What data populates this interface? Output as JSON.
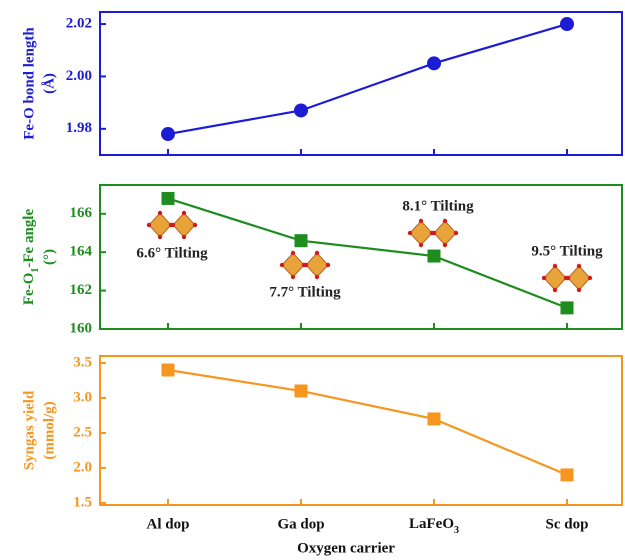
{
  "chart_data": [
    {
      "type": "line",
      "marker": "circle",
      "color": "#1c1cd6",
      "y_label": [
        "Fe-O bond length",
        "(Å)"
      ],
      "values": [
        1.978,
        1.987,
        2.005,
        2.02
      ],
      "ylim": [
        1.97,
        2.0246
      ],
      "yticks": [
        1.98,
        {
          "value": 2,
          "label": "2.00"
        },
        2.02
      ]
    },
    {
      "type": "line",
      "marker": "square",
      "color": "#1f8c1f",
      "y_label": [
        "Fe-O1-Fe angle",
        "(°)"
      ],
      "values": [
        166.8,
        164.6,
        163.8,
        161.1
      ],
      "annotations": [
        "6.6° Tilting",
        "7.7° Tilting",
        "8.1° Tilting",
        "9.5° Tilting"
      ],
      "ylim": [
        160,
        167.5
      ],
      "yticks": [
        160,
        162,
        164,
        166
      ]
    },
    {
      "type": "line",
      "marker": "square",
      "color": "#f7961f",
      "y_label": [
        "Syngas yield",
        "(mmol/g)"
      ],
      "categories": [
        "Al dop",
        "Ga dop",
        "LaFeO3",
        "Sc dop"
      ],
      "x_label": "Oxygen carrier",
      "values": [
        3.4,
        3.1,
        2.7,
        1.9
      ],
      "ylim": [
        1.47,
        3.6
      ],
      "yticks": [
        1.5,
        {
          "value": 2,
          "label": "2.0"
        },
        2.5,
        {
          "value": 3,
          "label": "3.0"
        },
        3.5
      ]
    }
  ]
}
